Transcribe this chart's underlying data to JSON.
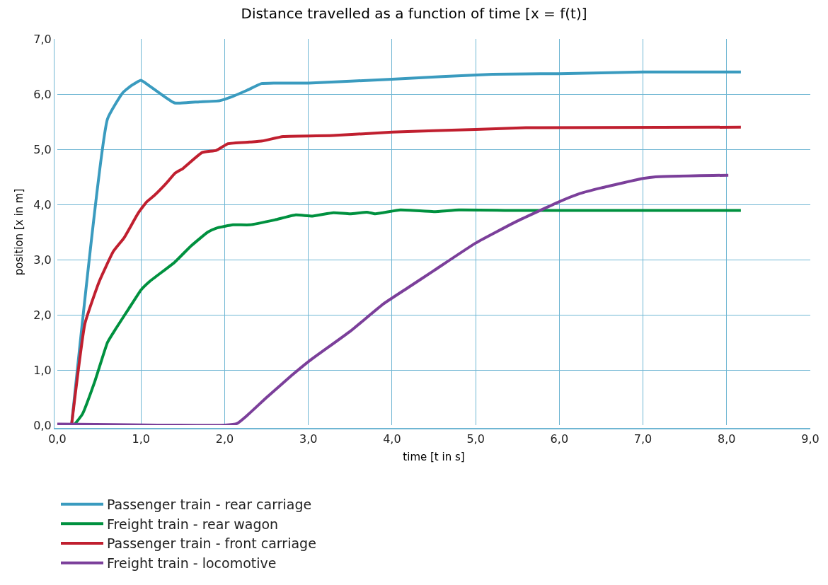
{
  "chart_data": {
    "type": "line",
    "title": "Distance travelled as a function of time [x = f(t)]",
    "xlabel": "time [t in s]",
    "ylabel": "position [x in m]",
    "xlim": [
      0,
      9
    ],
    "ylim": [
      0,
      7
    ],
    "xticks": [
      {
        "value": 0,
        "label": "0,0"
      },
      {
        "value": 1,
        "label": "1,0"
      },
      {
        "value": 2,
        "label": "2,0"
      },
      {
        "value": 3,
        "label": "3,0"
      },
      {
        "value": 4,
        "label": "4,0"
      },
      {
        "value": 5,
        "label": "5,0"
      },
      {
        "value": 6,
        "label": "6,0"
      },
      {
        "value": 7,
        "label": "7,0"
      },
      {
        "value": 8,
        "label": "8,0"
      },
      {
        "value": 9,
        "label": "9,0"
      }
    ],
    "yticks": [
      {
        "value": 0,
        "label": "0,0"
      },
      {
        "value": 1,
        "label": "1,0"
      },
      {
        "value": 2,
        "label": "2,0"
      },
      {
        "value": 3,
        "label": "3,0"
      },
      {
        "value": 4,
        "label": "4,0"
      },
      {
        "value": 5,
        "label": "5,0"
      },
      {
        "value": 6,
        "label": "6,0"
      },
      {
        "value": 7,
        "label": "7,0"
      }
    ],
    "grid": true,
    "legend": "bottom",
    "marker": "none",
    "line_style": "solid",
    "series": [
      {
        "name": "Passenger train - rear carriage",
        "color": "#3a9bbf",
        "x": [
          0.17,
          0.6,
          0.78,
          0.88,
          1.0,
          1.1,
          1.4,
          1.7,
          1.94,
          2.1,
          2.27,
          2.44,
          2.6,
          3.0,
          4.0,
          5.2,
          6.0,
          7.0,
          8.17
        ],
        "values": [
          0,
          5.55,
          6.02,
          6.15,
          6.25,
          6.15,
          5.84,
          5.86,
          5.88,
          5.96,
          6.07,
          6.19,
          6.2,
          6.2,
          6.27,
          6.36,
          6.37,
          6.4,
          6.4
        ]
      },
      {
        "name": "Passenger train - front carriage",
        "color": "#c01f2f",
        "x": [
          0.17,
          0.33,
          0.5,
          0.67,
          0.8,
          0.97,
          1.07,
          1.15,
          1.3,
          1.41,
          1.5,
          1.73,
          1.9,
          2.04,
          2.3,
          2.45,
          2.7,
          3.3,
          4.0,
          5.0,
          5.6,
          8.17
        ],
        "values": [
          0,
          1.84,
          2.6,
          3.15,
          3.4,
          3.85,
          4.05,
          4.15,
          4.38,
          4.57,
          4.65,
          4.94,
          4.98,
          5.1,
          5.13,
          5.15,
          5.23,
          5.25,
          5.31,
          5.36,
          5.39,
          5.4
        ]
      },
      {
        "name": "Freight train - rear wagon",
        "color": "#00913f",
        "x": [
          0.2,
          0.3,
          0.45,
          0.6,
          0.7,
          0.85,
          1.0,
          1.1,
          1.4,
          1.6,
          1.8,
          1.9,
          2.1,
          2.3,
          2.6,
          2.85,
          3.05,
          3.3,
          3.5,
          3.7,
          3.8,
          4.1,
          4.5,
          4.8,
          5.5,
          8.17
        ],
        "values": [
          0,
          0.2,
          0.8,
          1.5,
          1.75,
          2.1,
          2.45,
          2.6,
          2.95,
          3.25,
          3.5,
          3.57,
          3.63,
          3.63,
          3.72,
          3.81,
          3.79,
          3.85,
          3.83,
          3.86,
          3.83,
          3.9,
          3.87,
          3.9,
          3.89,
          3.89
        ]
      },
      {
        "name": "Freight train - locomotive",
        "color": "#7b3f9a",
        "x": [
          0,
          2.0,
          2.15,
          2.25,
          2.5,
          2.8,
          3.0,
          3.5,
          3.9,
          4.2,
          4.5,
          5.0,
          5.5,
          6.0,
          6.25,
          6.5,
          7.0,
          7.15,
          8.02
        ],
        "values": [
          0.02,
          0,
          0.03,
          0.15,
          0.5,
          0.9,
          1.15,
          1.7,
          2.2,
          2.5,
          2.8,
          3.3,
          3.7,
          4.05,
          4.2,
          4.3,
          4.47,
          4.5,
          4.53
        ]
      }
    ]
  }
}
